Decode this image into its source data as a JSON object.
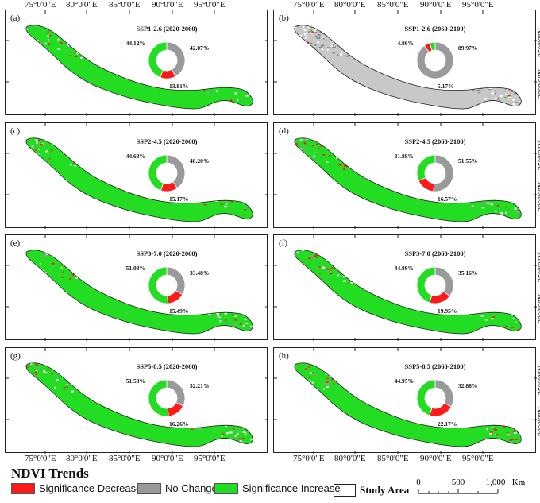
{
  "x_ticks": [
    "75°0'0\"E",
    "80°0'0\"E",
    "85°0'0\"E",
    "90°0'0\"E",
    "95°0'0\"E"
  ],
  "y_ticks": [
    "35°0'0\"N",
    "30°0'0\"N"
  ],
  "colors": {
    "decrease": "#ff1a1a",
    "nochange": "#9a9a9a",
    "increase": "#22dd22"
  },
  "panels": [
    {
      "label": "(a)",
      "title": "SSP1-2.6 (2020-2060)",
      "decrease": 13.81,
      "nochange": 42.07,
      "increase": 44.12,
      "lbl_dec": "13.81%",
      "lbl_nc": "42.07%",
      "lbl_inc": "44.12%",
      "style": "green"
    },
    {
      "label": "(b)",
      "title": "SSP1-2.6 (2060-2100)",
      "decrease": 5.17,
      "nochange": 89.97,
      "increase": 4.86,
      "lbl_dec": "5.17%",
      "lbl_nc": "89.97%",
      "lbl_inc": "4.86%",
      "style": "grey"
    },
    {
      "label": "(c)",
      "title": "SSP2-4.5 (2020-2060)",
      "decrease": 15.17,
      "nochange": 40.2,
      "increase": 44.63,
      "lbl_dec": "15.17%",
      "lbl_nc": "40.20%",
      "lbl_inc": "44.63%",
      "style": "green"
    },
    {
      "label": "(d)",
      "title": "SSP2-4.5 (2060-2100)",
      "decrease": 16.57,
      "nochange": 51.55,
      "increase": 31.88,
      "lbl_dec": "16.57%",
      "lbl_nc": "51.55%",
      "lbl_inc": "31.88%",
      "style": "green"
    },
    {
      "label": "(e)",
      "title": "SSP3-7.0 (2020-2060)",
      "decrease": 15.49,
      "nochange": 33.48,
      "increase": 51.03,
      "lbl_dec": "15.49%",
      "lbl_nc": "33.48%",
      "lbl_inc": "51.03%",
      "style": "green"
    },
    {
      "label": "(f)",
      "title": "SSP3-7.0 (2060-2100)",
      "decrease": 19.95,
      "nochange": 35.16,
      "increase": 44.89,
      "lbl_dec": "19.95%",
      "lbl_nc": "35.16%",
      "lbl_inc": "44.89%",
      "style": "green"
    },
    {
      "label": "(g)",
      "title": "SSP5-8.5 (2020-2060)",
      "decrease": 16.26,
      "nochange": 32.21,
      "increase": 51.53,
      "lbl_dec": "16.26%",
      "lbl_nc": "32.21%",
      "lbl_inc": "51.53%",
      "style": "green"
    },
    {
      "label": "(h)",
      "title": "SSP5-8.5 (2060-2100)",
      "decrease": 22.17,
      "nochange": 32.88,
      "increase": 44.95,
      "lbl_dec": "22.17%",
      "lbl_nc": "32.88%",
      "lbl_inc": "44.95%",
      "style": "green"
    }
  ],
  "legend": {
    "title": "NDVI Trends",
    "decrease": "Significance Decrease",
    "nochange": "No Change",
    "increase": "Significance Increase",
    "study_area": "Study Area"
  },
  "scale_bar": {
    "t0": "0",
    "t1": "500",
    "t2": "1,000",
    "unit": "Km"
  }
}
